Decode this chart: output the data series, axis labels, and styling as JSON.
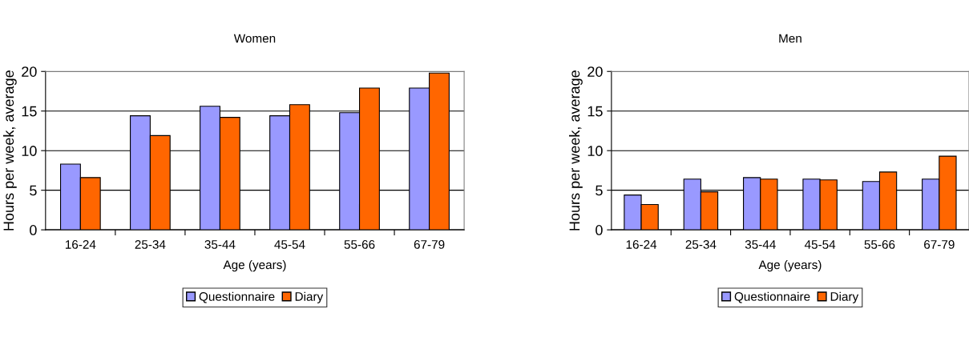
{
  "chart_data": [
    {
      "type": "bar",
      "title": "Women",
      "xlabel": "Age (years)",
      "ylabel": "Hours per week, average",
      "categories": [
        "16-24",
        "25-34",
        "35-44",
        "45-54",
        "55-66",
        "67-79"
      ],
      "series": [
        {
          "name": "Questionnaire",
          "color": "#9999ff",
          "values": [
            8.3,
            14.4,
            15.6,
            14.4,
            14.8,
            17.9
          ]
        },
        {
          "name": "Diary",
          "color": "#ff6600",
          "values": [
            6.6,
            11.9,
            14.2,
            15.8,
            17.9,
            19.8
          ]
        }
      ],
      "ylim": [
        0,
        20
      ],
      "yticks": [
        0,
        5,
        10,
        15,
        20
      ],
      "grid": "y",
      "legend": "bottom"
    },
    {
      "type": "bar",
      "title": "Men",
      "xlabel": "Age (years)",
      "ylabel": "Hours per week, average",
      "categories": [
        "16-24",
        "25-34",
        "35-44",
        "45-54",
        "55-66",
        "67-79"
      ],
      "series": [
        {
          "name": "Questionnaire",
          "color": "#9999ff",
          "values": [
            4.4,
            6.4,
            6.6,
            6.4,
            6.1,
            6.4
          ]
        },
        {
          "name": "Diary",
          "color": "#ff6600",
          "values": [
            3.2,
            4.8,
            6.4,
            6.3,
            7.3,
            9.3
          ]
        }
      ],
      "ylim": [
        0,
        20
      ],
      "yticks": [
        0,
        5,
        10,
        15,
        20
      ],
      "grid": "y",
      "legend": "bottom"
    }
  ]
}
